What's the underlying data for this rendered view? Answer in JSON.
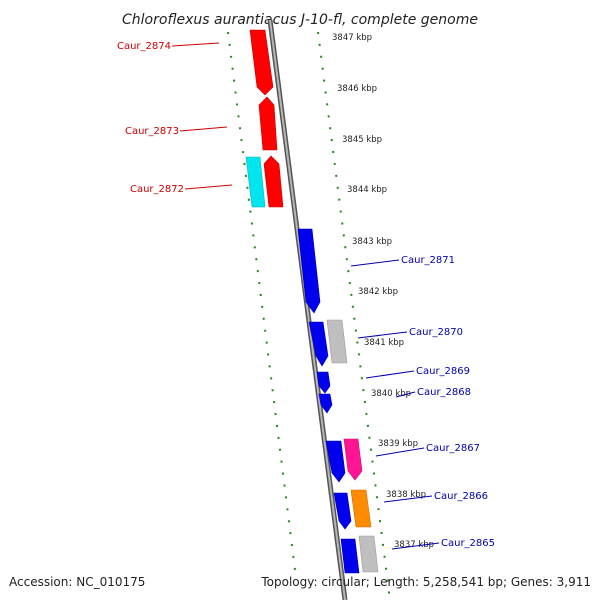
{
  "title": "Chloroflexus aurantiacus J-10-fl, complete genome",
  "footer": {
    "accession": "Accession: NC_010175",
    "summary": "Topology: circular; Length: 5,258,541 bp; Genes: 3,911"
  },
  "colors": {
    "axis": "#8a8a8a",
    "ruler_ticks": "#1e8a1e",
    "left_labels": "#cc0000",
    "right_labels": "#0000b0",
    "red_gene": "#ff0000",
    "blue_gene": "#0000ee",
    "cyan_gene": "#00e5ee",
    "gray_gene": "#bfbfbf",
    "pink_gene": "#ff1493",
    "orange_gene": "#ff8c00"
  },
  "scale_labels": [
    "3847 kbp",
    "3846 kbp",
    "3845 kbp",
    "3844 kbp",
    "3843 kbp",
    "3842 kbp",
    "3841 kbp",
    "3840 kbp",
    "3839 kbp",
    "3838 kbp",
    "3837 kbp"
  ],
  "left_gene_labels": [
    "Caur_2874",
    "Caur_2873",
    "Caur_2872"
  ],
  "right_gene_labels": [
    "Caur_2871",
    "Caur_2870",
    "Caur_2869",
    "Caur_2868",
    "Caur_2867",
    "Caur_2866",
    "Caur_2865"
  ]
}
